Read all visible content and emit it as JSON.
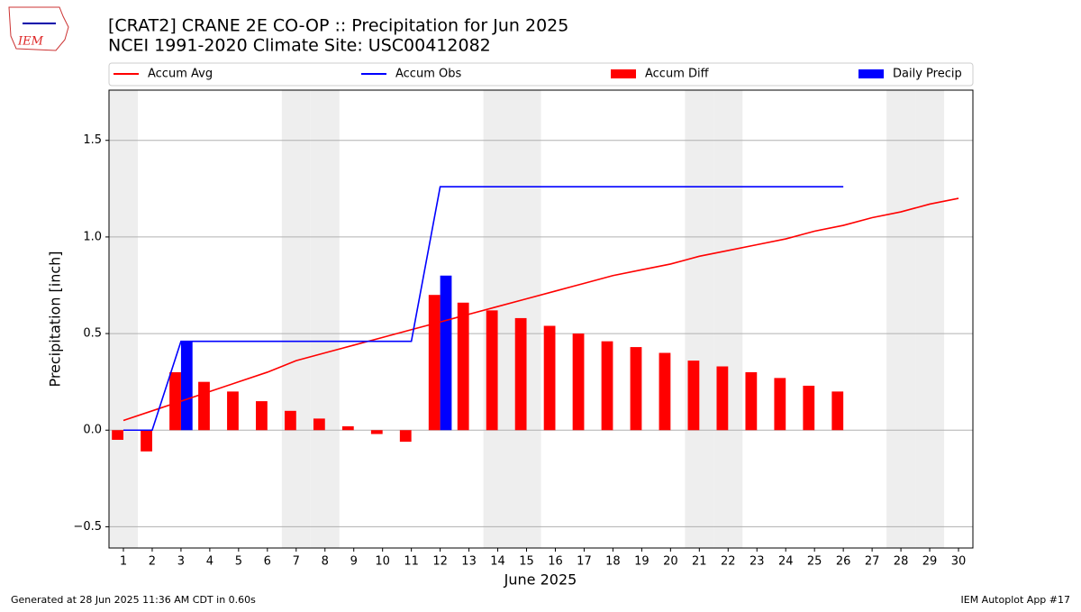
{
  "logo_text": "IEM",
  "chart_data": {
    "type": "combo",
    "title": "[CRAT2] CRANE 2E CO-OP :: Precipitation for Jun 2025",
    "subtitle": "NCEI 1991-2020 Climate Site: USC00412082",
    "y_label": "Precipitation [inch]",
    "x_label": "June 2025",
    "footer_left": "Generated at 28 Jun 2025 11:36 AM CDT in 0.60s",
    "footer_right": "IEM Autoplot App #17",
    "x": [
      1,
      2,
      3,
      4,
      5,
      6,
      7,
      8,
      9,
      10,
      11,
      12,
      13,
      14,
      15,
      16,
      17,
      18,
      19,
      20,
      21,
      22,
      23,
      24,
      25,
      26,
      27,
      28,
      29,
      30
    ],
    "xlim": [
      0.5,
      30.5
    ],
    "xticks": [
      1,
      2,
      3,
      4,
      5,
      6,
      7,
      8,
      9,
      10,
      11,
      12,
      13,
      14,
      15,
      16,
      17,
      18,
      19,
      20,
      21,
      22,
      23,
      24,
      25,
      26,
      27,
      28,
      29,
      30
    ],
    "ylim": [
      -0.61,
      1.76
    ],
    "yticks": [
      {
        "value": -0.5,
        "label": "−0.5"
      },
      {
        "value": 0,
        "label": "0.0"
      },
      0.5,
      {
        "value": 1,
        "label": "1.0"
      },
      1.5
    ],
    "grid": true,
    "shaded_days": [
      1,
      7,
      8,
      14,
      15,
      21,
      22,
      28,
      29
    ],
    "shade_color": "#eeeeee",
    "series": [
      {
        "name": "Accum Avg",
        "type": "line",
        "color": "#ff0000",
        "values": [
          0.05,
          0.1,
          0.15,
          0.2,
          0.25,
          0.3,
          0.36,
          0.4,
          0.44,
          0.48,
          0.52,
          0.56,
          0.6,
          0.64,
          0.68,
          0.72,
          0.76,
          0.8,
          0.83,
          0.86,
          0.9,
          0.93,
          0.96,
          0.99,
          1.03,
          1.06,
          1.1,
          1.13,
          1.17,
          1.2
        ]
      },
      {
        "name": "Accum Obs",
        "type": "line",
        "color": "#0000ff",
        "values": [
          0,
          0,
          0.46,
          0.46,
          0.46,
          0.46,
          0.46,
          0.46,
          0.46,
          0.46,
          0.46,
          1.26,
          1.26,
          1.26,
          1.26,
          1.26,
          1.26,
          1.26,
          1.26,
          1.26,
          1.26,
          1.26,
          1.26,
          1.26,
          1.26,
          1.26,
          null,
          null,
          null,
          null
        ]
      },
      {
        "name": "Accum Diff",
        "type": "bar",
        "side": "left",
        "color": "#ff0000",
        "values": [
          -0.05,
          -0.11,
          0.3,
          0.25,
          0.2,
          0.15,
          0.1,
          0.06,
          0.02,
          -0.02,
          -0.06,
          0.7,
          0.66,
          0.62,
          0.58,
          0.54,
          0.5,
          0.46,
          0.43,
          0.4,
          0.36,
          0.33,
          0.3,
          0.27,
          0.23,
          0.2,
          null,
          null,
          null,
          null
        ]
      },
      {
        "name": "Daily Precip",
        "type": "bar",
        "side": "right",
        "color": "#0000ff",
        "values": [
          0,
          0,
          0.46,
          0,
          0,
          0,
          0,
          0,
          0,
          0,
          0,
          0.8,
          0,
          0,
          0,
          0,
          0,
          0,
          0,
          0,
          0,
          0,
          0,
          0,
          0,
          0,
          null,
          null,
          null,
          null
        ]
      }
    ]
  }
}
